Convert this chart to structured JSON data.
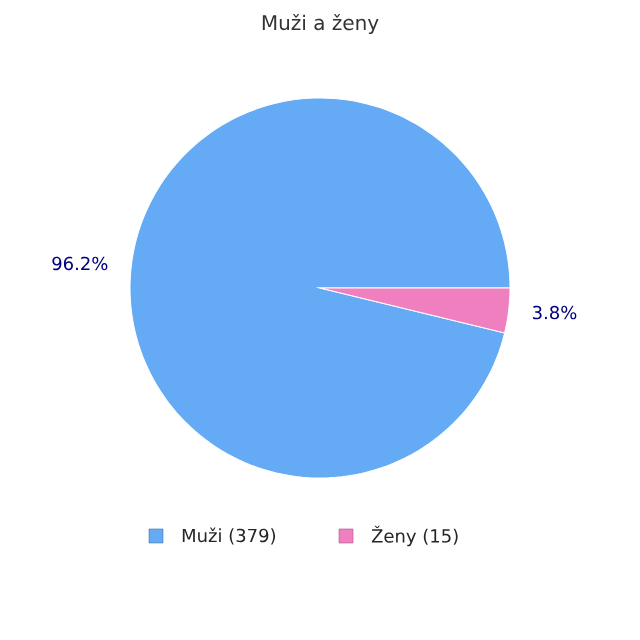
{
  "chart_data": {
    "type": "pie",
    "title": "Muži a ženy",
    "categories": [
      "Muži (379)",
      "Ženy (15)"
    ],
    "values": [
      96.2,
      3.8
    ],
    "value_labels": [
      "96.2%",
      "3.8%"
    ],
    "colors": [
      "#64aaf4",
      "#f07fbf"
    ],
    "legend": "bottom"
  }
}
